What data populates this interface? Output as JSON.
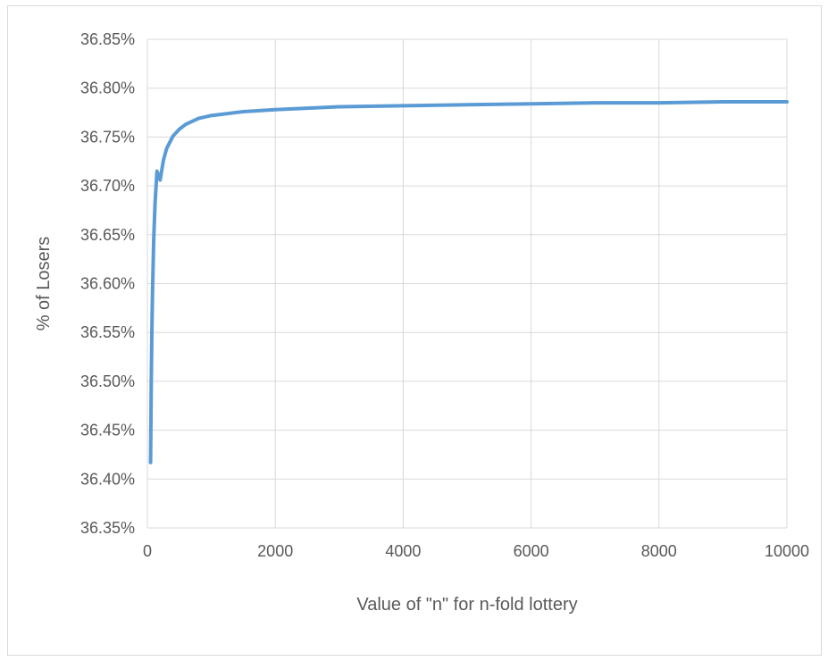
{
  "chart_data": {
    "type": "line",
    "title": "",
    "xlabel": "Value of \"n\" for n-fold lottery",
    "ylabel": "% of Losers",
    "xlim": [
      0,
      10000
    ],
    "ylim": [
      36.35,
      36.85
    ],
    "x_ticks": [
      0,
      2000,
      4000,
      6000,
      8000,
      10000
    ],
    "x_tick_labels": [
      "0",
      "2000",
      "4000",
      "6000",
      "8000",
      "10000"
    ],
    "y_ticks": [
      36.35,
      36.4,
      36.45,
      36.5,
      36.55,
      36.6,
      36.65,
      36.7,
      36.75,
      36.8,
      36.85
    ],
    "y_tick_labels": [
      "36.35%",
      "36.40%",
      "36.45%",
      "36.50%",
      "36.55%",
      "36.60%",
      "36.65%",
      "36.70%",
      "36.75%",
      "36.80%",
      "36.85%"
    ],
    "grid": true,
    "legend": "none",
    "series": [
      {
        "color": "#5b9bd5",
        "x": [
          50,
          60,
          70,
          80,
          100,
          120,
          150,
          200,
          250,
          300,
          400,
          500,
          600,
          800,
          1000,
          1500,
          2000,
          3000,
          4000,
          5000,
          6000,
          7000,
          8000,
          9000,
          10000
        ],
        "y": [
          36.417,
          36.494,
          36.549,
          36.59,
          36.647,
          36.682,
          36.715,
          36.706,
          36.726,
          36.738,
          36.751,
          36.758,
          36.763,
          36.769,
          36.772,
          36.776,
          36.778,
          36.781,
          36.782,
          36.783,
          36.784,
          36.785,
          36.785,
          36.786,
          36.786
        ]
      }
    ]
  }
}
